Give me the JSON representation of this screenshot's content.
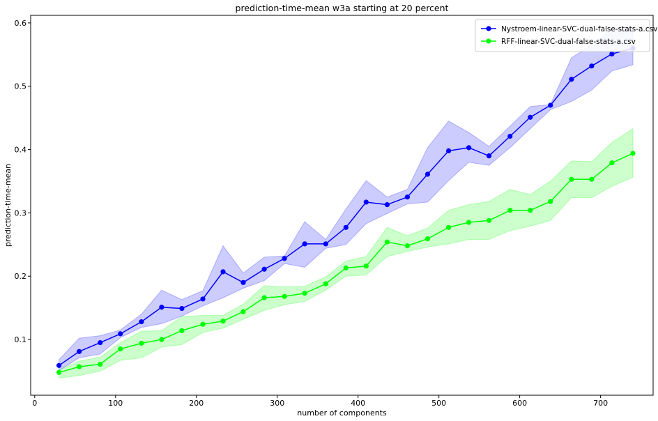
{
  "chart_data": {
    "type": "line",
    "title": "prediction-time-mean w3a starting at 20 percent",
    "xlabel": "number of components",
    "ylabel": "prediction-time-mean",
    "xlim": [
      -5,
      765
    ],
    "ylim": [
      0.012,
      0.612
    ],
    "xticks": [
      0,
      100,
      200,
      300,
      400,
      500,
      600,
      700
    ],
    "yticks": [
      0.1,
      0.2,
      0.3,
      0.4,
      0.5,
      0.6
    ],
    "xtick_labels": [
      "0",
      "100",
      "200",
      "300",
      "400",
      "500",
      "600",
      "700"
    ],
    "ytick_labels": [
      "0.1",
      "0.2",
      "0.3",
      "0.4",
      "0.5",
      "0.6"
    ],
    "grid": false,
    "legend_position": "top-right",
    "x": [
      30,
      55,
      81,
      106,
      132,
      157,
      182,
      208,
      233,
      258,
      284,
      309,
      334,
      360,
      385,
      410,
      436,
      461,
      486,
      512,
      537,
      562,
      588,
      613,
      638,
      664,
      689,
      714,
      740
    ],
    "series": [
      {
        "name": "Nystroem-linear-SVC-dual-false-stats-a.csv",
        "color": "#0000ff",
        "band_color": "#0000ff",
        "values": [
          0.059,
          0.081,
          0.095,
          0.109,
          0.128,
          0.151,
          0.149,
          0.164,
          0.207,
          0.19,
          0.211,
          0.228,
          0.251,
          0.251,
          0.277,
          0.317,
          0.313,
          0.325,
          0.361,
          0.398,
          0.403,
          0.39,
          0.421,
          0.451,
          0.47,
          0.511,
          0.532,
          0.551,
          0.56
        ],
        "upper": [
          0.068,
          0.102,
          0.106,
          0.115,
          0.14,
          0.178,
          0.163,
          0.177,
          0.248,
          0.205,
          0.23,
          0.232,
          0.286,
          0.258,
          0.306,
          0.351,
          0.325,
          0.337,
          0.403,
          0.445,
          0.427,
          0.405,
          0.437,
          0.468,
          0.471,
          0.545,
          0.565,
          0.59,
          0.59
        ],
        "lower": [
          0.051,
          0.071,
          0.077,
          0.103,
          0.119,
          0.125,
          0.137,
          0.153,
          0.166,
          0.181,
          0.193,
          0.22,
          0.214,
          0.244,
          0.25,
          0.283,
          0.299,
          0.314,
          0.317,
          0.351,
          0.38,
          0.375,
          0.403,
          0.433,
          0.463,
          0.476,
          0.494,
          0.524,
          0.534
        ]
      },
      {
        "name": "RFF-linear-SVC-dual-false-stats-a.csv",
        "color": "#00ff00",
        "band_color": "#00ff00",
        "values": [
          0.048,
          0.057,
          0.061,
          0.085,
          0.094,
          0.1,
          0.114,
          0.124,
          0.129,
          0.144,
          0.166,
          0.168,
          0.173,
          0.188,
          0.213,
          0.216,
          0.254,
          0.248,
          0.259,
          0.277,
          0.285,
          0.288,
          0.304,
          0.304,
          0.318,
          0.353,
          0.353,
          0.379,
          0.394
        ],
        "upper": [
          0.052,
          0.066,
          0.072,
          0.095,
          0.113,
          0.114,
          0.136,
          0.138,
          0.138,
          0.156,
          0.185,
          0.183,
          0.184,
          0.199,
          0.224,
          0.231,
          0.277,
          0.264,
          0.276,
          0.304,
          0.313,
          0.318,
          0.337,
          0.329,
          0.35,
          0.382,
          0.381,
          0.411,
          0.433
        ],
        "lower": [
          0.039,
          0.043,
          0.05,
          0.067,
          0.071,
          0.088,
          0.092,
          0.111,
          0.118,
          0.132,
          0.146,
          0.155,
          0.16,
          0.178,
          0.2,
          0.202,
          0.231,
          0.239,
          0.246,
          0.251,
          0.258,
          0.258,
          0.272,
          0.279,
          0.288,
          0.324,
          0.324,
          0.342,
          0.356
        ]
      }
    ]
  }
}
